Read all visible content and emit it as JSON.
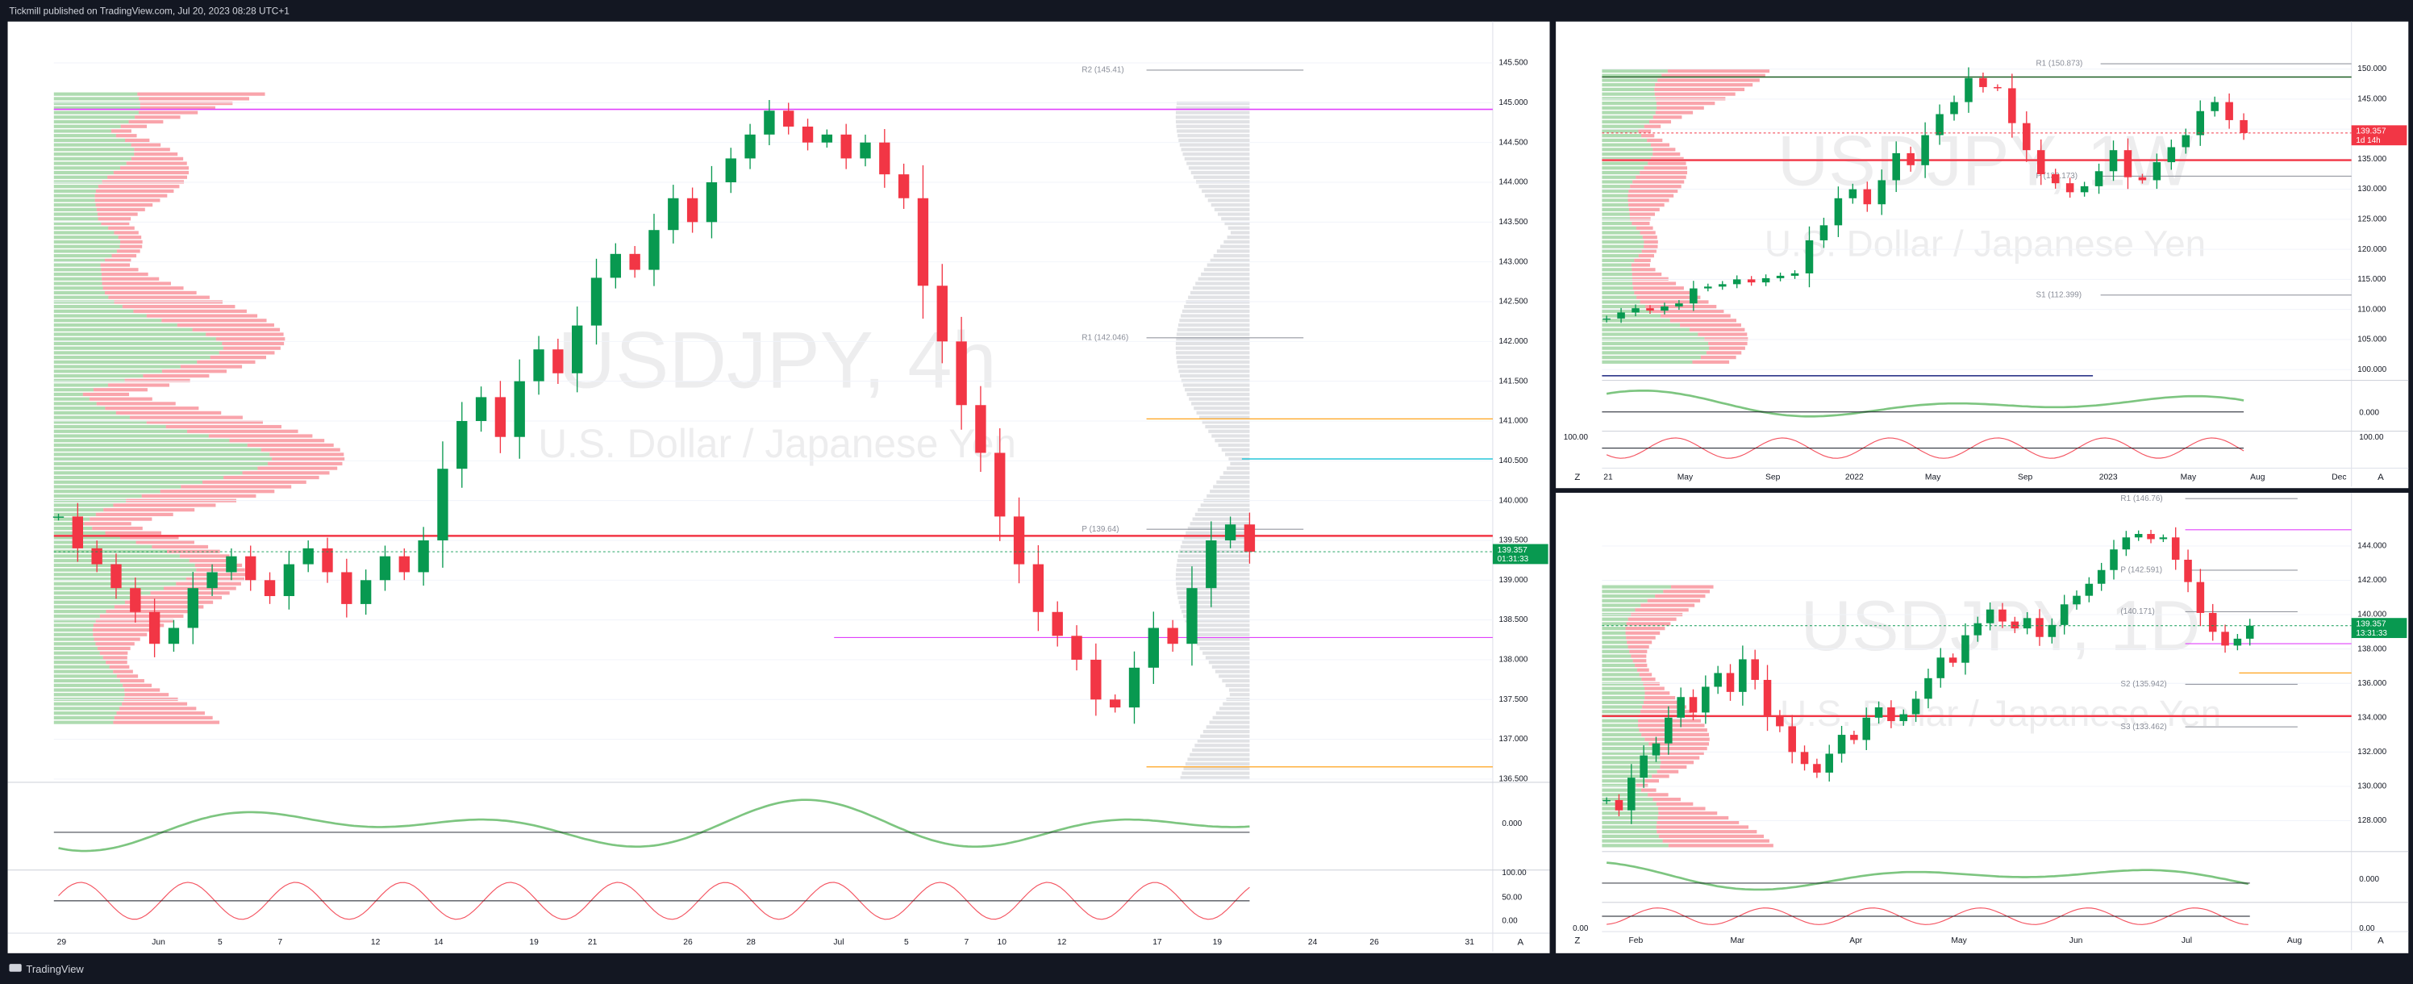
{
  "header": {
    "publisher": "Tickmill published on TradingView.com, Jul 20, 2023 08:28 UTC+1"
  },
  "footer": {
    "brand": "TradingView"
  },
  "panels": [
    {
      "symbol": "USDJPY, 4h",
      "description": "U.S. Dollar / Japanese Yen",
      "ylim": [
        136.46,
        146.02
      ],
      "yticks": [
        {
          "value": 145.5,
          "label": "145.500"
        },
        {
          "value": 145,
          "label": "145.000"
        },
        {
          "value": 144.5,
          "label": "144.500"
        },
        {
          "value": 144,
          "label": "144.000"
        },
        {
          "value": 143.5,
          "label": "143.500"
        },
        {
          "value": 143,
          "label": "143.000"
        },
        {
          "value": 142.5,
          "label": "142.500"
        },
        {
          "value": 142,
          "label": "142.000"
        },
        {
          "value": 141.5,
          "label": "141.500"
        },
        {
          "value": 141,
          "label": "141.000"
        },
        {
          "value": 140.5,
          "label": "140.500"
        },
        {
          "value": 140,
          "label": "140.000"
        },
        {
          "value": 139.5,
          "label": "139.500"
        },
        {
          "value": 139,
          "label": "139.000"
        },
        {
          "value": 138.5,
          "label": "138.500"
        },
        {
          "value": 138,
          "label": "138.000"
        },
        {
          "value": 137.5,
          "label": "137.500"
        },
        {
          "value": 137,
          "label": "137.000"
        },
        {
          "value": 136.5,
          "label": "136.500"
        }
      ],
      "closes": [
        139.8,
        139.4,
        139.2,
        138.9,
        138.6,
        138.2,
        138.4,
        138.9,
        139.1,
        139.3,
        139.0,
        138.8,
        139.2,
        139.4,
        139.1,
        138.7,
        139.0,
        139.3,
        139.1,
        139.5,
        140.4,
        141.0,
        141.3,
        140.8,
        141.5,
        141.9,
        141.6,
        142.2,
        142.8,
        143.1,
        142.9,
        143.4,
        143.8,
        143.5,
        144.0,
        144.3,
        144.6,
        144.9,
        144.7,
        144.5,
        144.6,
        144.3,
        144.5,
        144.1,
        143.8,
        142.7,
        142.0,
        141.2,
        140.6,
        139.8,
        139.2,
        138.6,
        138.3,
        138.0,
        137.5,
        137.4,
        137.9,
        138.4,
        138.2,
        138.9,
        139.5,
        139.7,
        139.357
      ],
      "last_price": 139.357,
      "countdown": "01:31:33",
      "last_price_color": "#089950",
      "pivots": [
        {
          "label": "R2 (145.41)",
          "value": 145.41
        },
        {
          "label": "R1 (142.046)",
          "value": 142.046
        },
        {
          "label": "P (139.64)",
          "value": 139.64
        }
      ],
      "time_labels": [
        "29",
        "Jun",
        "5",
        "7",
        "12",
        "14",
        "19",
        "21",
        "26",
        "28",
        "Jul",
        "5",
        "7",
        "10",
        "12",
        "17",
        "19",
        "24",
        "26",
        "31"
      ],
      "osc_labels": [
        "0.000",
        "100.00",
        "50.00",
        "0.00"
      ],
      "right_button": "A"
    },
    {
      "symbol": "USDJPY, 1W",
      "description": "U.S. Dollar / Japanese Yen",
      "ylim": [
        98.2,
        157.9
      ],
      "yticks": [
        {
          "value": 150,
          "label": "150.000"
        },
        {
          "value": 145,
          "label": "145.000"
        },
        {
          "value": 140,
          "label": "140.000"
        },
        {
          "value": 135,
          "label": "135.000"
        },
        {
          "value": 130,
          "label": "130.000"
        },
        {
          "value": 125,
          "label": "125.000"
        },
        {
          "value": 120,
          "label": "120.000"
        },
        {
          "value": 115,
          "label": "115.000"
        },
        {
          "value": 110,
          "label": "110.000"
        },
        {
          "value": 105,
          "label": "105.000"
        },
        {
          "value": 100,
          "label": "100.000"
        }
      ],
      "closes": [
        108.5,
        109.5,
        110.2,
        109.8,
        110.5,
        111.0,
        113.5,
        113.8,
        114.2,
        115.0,
        114.5,
        115.2,
        115.6,
        116.0,
        121.5,
        124.0,
        128.5,
        130.0,
        127.5,
        131.5,
        136.0,
        134.0,
        139.0,
        142.5,
        144.5,
        148.5,
        147.0,
        146.8,
        141.0,
        136.5,
        132.5,
        131.0,
        129.5,
        130.5,
        133.0,
        136.5,
        132.0,
        131.5,
        134.5,
        137.0,
        139.0,
        143.0,
        144.5,
        141.5,
        139.357
      ],
      "last_price": 139.357,
      "countdown": "1d 14h",
      "last_price_color": "#f23645",
      "pivots": [
        {
          "label": "R1 (150.873)",
          "value": 150.873
        },
        {
          "label": "P (132.173)",
          "value": 132.173
        },
        {
          "label": "S1 (112.399)",
          "value": 112.399
        }
      ],
      "time_labels": [
        "21",
        "May",
        "Sep",
        "2022",
        "May",
        "Sep",
        "2023",
        "May",
        "Aug",
        "Dec"
      ],
      "osc_labels": [
        "0.000",
        "100.00",
        "100.00"
      ],
      "left_button": "Z",
      "right_button": "A"
    },
    {
      "symbol": "USDJPY, 1D",
      "description": "U.S. Dollar / Japanese Yen",
      "ylim": [
        126.2,
        147.1
      ],
      "yticks": [
        {
          "value": 144,
          "label": "144.000"
        },
        {
          "value": 142,
          "label": "142.000"
        },
        {
          "value": 140,
          "label": "140.000"
        },
        {
          "value": 138,
          "label": "138.000"
        },
        {
          "value": 136,
          "label": "136.000"
        },
        {
          "value": 134,
          "label": "134.000"
        },
        {
          "value": 132,
          "label": "132.000"
        },
        {
          "value": 130,
          "label": "130.000"
        },
        {
          "value": 128,
          "label": "128.000"
        }
      ],
      "closes": [
        129.2,
        128.6,
        130.5,
        131.8,
        132.5,
        134.0,
        135.2,
        134.3,
        135.8,
        136.6,
        135.5,
        137.4,
        136.2,
        134.1,
        133.5,
        132.0,
        131.3,
        130.8,
        131.9,
        133.0,
        132.7,
        134.0,
        134.6,
        133.8,
        134.2,
        135.1,
        136.3,
        137.5,
        137.2,
        138.8,
        139.5,
        140.3,
        139.6,
        139.2,
        139.8,
        138.7,
        139.4,
        140.6,
        141.1,
        141.8,
        142.6,
        143.8,
        144.5,
        144.7,
        144.4,
        144.5,
        143.2,
        141.9,
        140.1,
        139.0,
        138.2,
        138.6,
        139.357
      ],
      "last_price": 139.357,
      "countdown": "13:31:33",
      "last_price_color": "#089950",
      "pivots": [
        {
          "label": "R1 (146.76)",
          "value": 146.76
        },
        {
          "label": "P (142.591)",
          "value": 142.591
        },
        {
          "label": "(140.171)",
          "value": 140.171
        },
        {
          "label": "S2 (135.942)",
          "value": 135.942
        },
        {
          "label": "S3 (133.462)",
          "value": 133.462
        }
      ],
      "time_labels": [
        "Feb",
        "Mar",
        "Apr",
        "May",
        "Jun",
        "Jul",
        "Aug"
      ],
      "osc_labels": [
        "0.000",
        "0.00",
        "0.00"
      ],
      "left_button": "Z",
      "right_button": "A"
    }
  ]
}
